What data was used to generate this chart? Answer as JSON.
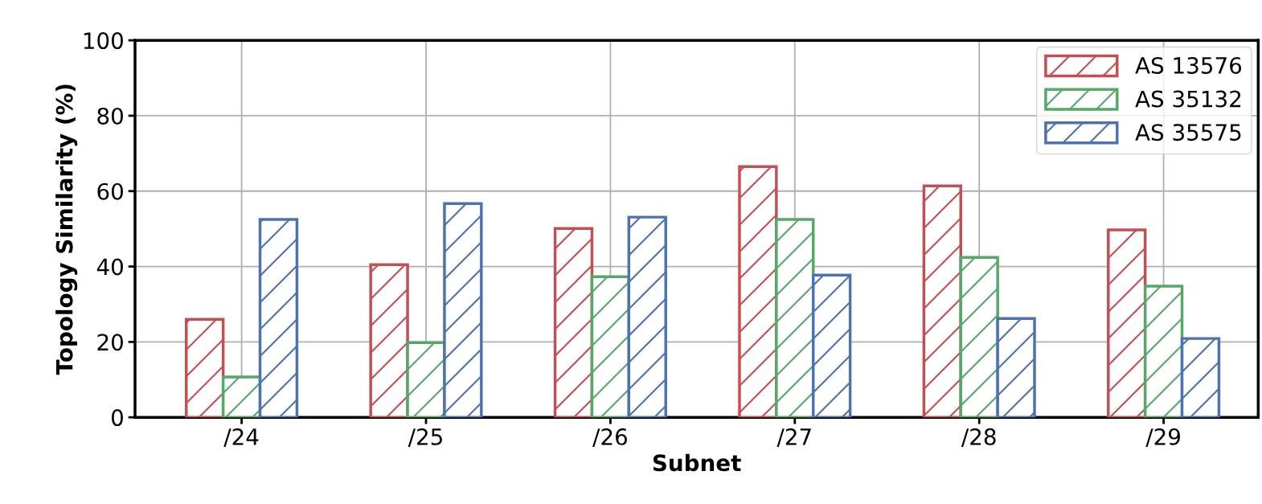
{
  "chart_data": {
    "type": "bar",
    "xlabel": "Subnet",
    "ylabel": "Topology Similarity (%)",
    "categories": [
      "/24",
      "/25",
      "/26",
      "/27",
      "/28",
      "/29"
    ],
    "series": [
      {
        "name": "AS 13576",
        "color": "#c44e52",
        "values": [
          26.0,
          40.5,
          50.1,
          66.5,
          61.4,
          49.7
        ]
      },
      {
        "name": "AS 35132",
        "color": "#55a868",
        "values": [
          10.7,
          19.8,
          37.3,
          52.5,
          42.4,
          34.8
        ]
      },
      {
        "name": "AS 35575",
        "color": "#4c72b0",
        "values": [
          52.5,
          56.7,
          53.1,
          37.7,
          26.2,
          20.9
        ]
      }
    ],
    "ylim": [
      0,
      100
    ],
    "yticks": [
      0,
      20,
      40,
      60,
      80,
      100
    ],
    "grid": true,
    "legend": "top right"
  }
}
